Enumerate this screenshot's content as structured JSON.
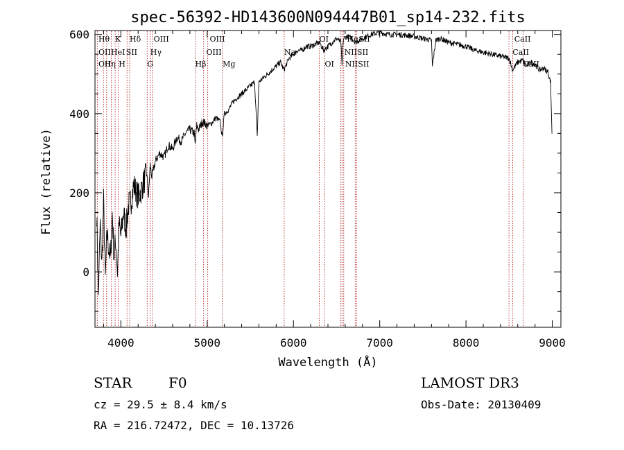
{
  "chart_data": {
    "type": "line",
    "title": "spec-56392-HD143600N094447B01_sp14-232.fits",
    "xlabel": "Wavelength (Å)",
    "ylabel": "Flux (relative)",
    "xlim": [
      3700,
      9100
    ],
    "ylim": [
      -140,
      610
    ],
    "xticks": [
      4000,
      5000,
      6000,
      7000,
      8000,
      9000
    ],
    "yticks": [
      0,
      200,
      400,
      600
    ],
    "grid": false,
    "line_color": "#000000",
    "marker_color": "#b22222",
    "series": [
      {
        "x": [
          3720,
          3740,
          3760,
          3780,
          3800,
          3820,
          3840,
          3860,
          3880,
          3900,
          3920,
          3940,
          3960,
          3980,
          4000,
          4030,
          4060,
          4090,
          4120,
          4150,
          4180,
          4210,
          4240,
          4270,
          4300,
          4320,
          4340,
          4360,
          4400,
          4450,
          4500,
          4550,
          4600,
          4650,
          4700,
          4750,
          4800,
          4850,
          4861,
          4880,
          4900,
          4950,
          5000,
          5050,
          5100,
          5150,
          5175,
          5200,
          5250,
          5300,
          5350,
          5400,
          5450,
          5500,
          5550,
          5580,
          5600,
          5650,
          5700,
          5750,
          5800,
          5850,
          5890,
          5950,
          6000,
          6050,
          6100,
          6150,
          6200,
          6250,
          6300,
          6350,
          6400,
          6450,
          6500,
          6550,
          6563,
          6580,
          6620,
          6680,
          6720,
          6800,
          6900,
          7000,
          7100,
          7200,
          7300,
          7400,
          7500,
          7600,
          7610,
          7650,
          7700,
          7800,
          7900,
          8000,
          8100,
          8200,
          8300,
          8400,
          8500,
          8540,
          8600,
          8660,
          8700,
          8750,
          8800,
          8850,
          8900,
          8950,
          8980,
          9000
        ],
        "y": [
          150,
          -60,
          120,
          20,
          180,
          -20,
          100,
          60,
          30,
          150,
          40,
          80,
          0,
          120,
          90,
          150,
          110,
          170,
          180,
          220,
          200,
          190,
          210,
          230,
          250,
          190,
          270,
          240,
          280,
          300,
          290,
          320,
          310,
          340,
          330,
          350,
          360,
          350,
          320,
          370,
          360,
          380,
          370,
          375,
          390,
          380,
          340,
          400,
          410,
          430,
          440,
          450,
          460,
          470,
          480,
          340,
          480,
          490,
          500,
          510,
          520,
          530,
          510,
          540,
          550,
          560,
          560,
          570,
          570,
          575,
          580,
          560,
          570,
          580,
          590,
          580,
          520,
          590,
          595,
          590,
          580,
          590,
          600,
          605,
          600,
          600,
          598,
          595,
          590,
          585,
          520,
          585,
          590,
          580,
          575,
          570,
          560,
          555,
          550,
          545,
          540,
          510,
          530,
          535,
          520,
          530,
          525,
          510,
          515,
          505,
          480,
          320
        ]
      }
    ],
    "lines": [
      {
        "wl": 3727,
        "labels": [
          "OII"
        ]
      },
      {
        "wl": 3798,
        "labels": [
          "Hθ"
        ]
      },
      {
        "wl": 3835,
        "labels": [
          "Hη"
        ]
      },
      {
        "wl": 3889,
        "labels": [
          "HeI"
        ]
      },
      {
        "wl": 3934,
        "labels": [
          "K"
        ]
      },
      {
        "wl": 3970,
        "labels": [
          "H"
        ]
      },
      {
        "wl": 4072,
        "labels": [
          "SII"
        ]
      },
      {
        "wl": 4102,
        "labels": [
          "Hδ"
        ]
      },
      {
        "wl": 4305,
        "labels": [
          "G"
        ]
      },
      {
        "wl": 4341,
        "labels": [
          "Hγ"
        ]
      },
      {
        "wl": 4363,
        "labels": [
          "OIII"
        ]
      },
      {
        "wl": 4861,
        "labels": [
          "Hβ"
        ]
      },
      {
        "wl": 4959,
        "labels": [
          "OIII"
        ]
      },
      {
        "wl": 5007,
        "labels": [
          "OIII"
        ]
      },
      {
        "wl": 5175,
        "labels": [
          "Mg"
        ]
      },
      {
        "wl": 5893,
        "labels": [
          "Na"
        ]
      },
      {
        "wl": 6300,
        "labels": [
          "OI"
        ]
      },
      {
        "wl": 6364,
        "labels": [
          "OI"
        ]
      },
      {
        "wl": 6548,
        "labels": [
          "NII"
        ]
      },
      {
        "wl": 6563,
        "labels": [
          "Hα"
        ]
      },
      {
        "wl": 6583,
        "labels": [
          "NII"
        ]
      },
      {
        "wl": 6716,
        "labels": [
          "SII"
        ]
      },
      {
        "wl": 6731,
        "labels": [
          "SII"
        ]
      },
      {
        "wl": 8498,
        "labels": [
          "CaII"
        ]
      },
      {
        "wl": 8542,
        "labels": [
          "CaII"
        ]
      },
      {
        "wl": 8662,
        "labels": [
          "CaII"
        ]
      }
    ],
    "line_label_rows": [
      {
        "wl": 3740,
        "text": "Hθ",
        "row": 0
      },
      {
        "wl": 3740,
        "text": "OII",
        "row": 1
      },
      {
        "wl": 3740,
        "text": "OII",
        "row": 2
      },
      {
        "wl": 3810,
        "text": "Hη",
        "row": 2
      },
      {
        "wl": 3885,
        "text": "HeI",
        "row": 1
      },
      {
        "wl": 3934,
        "text": "K",
        "row": 0
      },
      {
        "wl": 3975,
        "text": "H",
        "row": 2
      },
      {
        "wl": 4060,
        "text": "SII",
        "row": 1
      },
      {
        "wl": 4102,
        "text": "Hδ",
        "row": 0
      },
      {
        "wl": 4305,
        "text": "G",
        "row": 2
      },
      {
        "wl": 4341,
        "text": "Hγ",
        "row": 1
      },
      {
        "wl": 4380,
        "text": "OIII",
        "row": 0
      },
      {
        "wl": 4861,
        "text": "Hβ",
        "row": 2
      },
      {
        "wl": 4990,
        "text": "OIII",
        "row": 1
      },
      {
        "wl": 5030,
        "text": "OIII",
        "row": 0
      },
      {
        "wl": 5180,
        "text": "Mg",
        "row": 2
      },
      {
        "wl": 5893,
        "text": "Na",
        "row": 1
      },
      {
        "wl": 6300,
        "text": "OI",
        "row": 0
      },
      {
        "wl": 6364,
        "text": "OI",
        "row": 2
      },
      {
        "wl": 6590,
        "text": "NIISII",
        "row": 1
      },
      {
        "wl": 6600,
        "text": "NIISII",
        "row": 2
      },
      {
        "wl": 6620,
        "text": "HαSII",
        "row": 0
      },
      {
        "wl": 8560,
        "text": "CaII",
        "row": 0
      },
      {
        "wl": 8540,
        "text": "CaII",
        "row": 1
      },
      {
        "wl": 8660,
        "text": "CaII",
        "row": 2
      }
    ]
  },
  "info": {
    "object_class": "STAR",
    "subclass": "F0",
    "survey": "LAMOST DR3",
    "redshift": "cz = 29.5 ± 8.4 km/s",
    "obs_date": "Obs-Date: 20130409",
    "coords": "RA = 216.72472, DEC =  10.13726"
  }
}
